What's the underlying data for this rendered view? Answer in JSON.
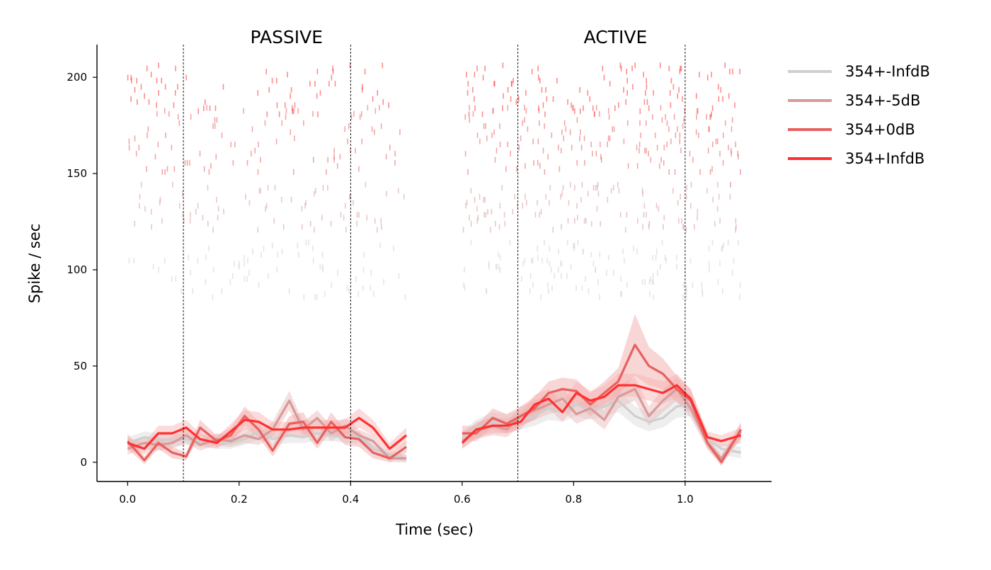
{
  "chart_data": {
    "type": "line",
    "xlabel": "Time (sec)",
    "ylabel": "Spike / sec",
    "xlim": [
      -0.055,
      1.155
    ],
    "ylim": [
      -10,
      217
    ],
    "xticks": [
      0.0,
      0.2,
      0.4,
      0.6,
      0.8,
      1.0
    ],
    "xtick_labels": [
      "0.0",
      "0.2",
      "0.4",
      "0.6",
      "0.8",
      "1.0"
    ],
    "yticks": [
      0,
      50,
      100,
      150,
      200
    ],
    "ytick_labels": [
      "0",
      "50",
      "100",
      "150",
      "200"
    ],
    "panel_titles": [
      {
        "label": "PASSIVE",
        "x": 0.285
      },
      {
        "label": "ACTIVE",
        "x": 0.875
      }
    ],
    "vlines": [
      0.1,
      0.4,
      0.7,
      1.0
    ],
    "grid": false,
    "legend_position": "outside-right",
    "panels": [
      {
        "title": "PASSIVE",
        "x": [
          0.0,
          0.03,
          0.055,
          0.08,
          0.105,
          0.13,
          0.16,
          0.185,
          0.21,
          0.235,
          0.26,
          0.29,
          0.315,
          0.34,
          0.365,
          0.39,
          0.415,
          0.44,
          0.47,
          0.5
        ]
      },
      {
        "title": "ACTIVE",
        "x": [
          0.6,
          0.625,
          0.655,
          0.68,
          0.705,
          0.73,
          0.755,
          0.78,
          0.805,
          0.83,
          0.855,
          0.88,
          0.91,
          0.935,
          0.96,
          0.985,
          1.01,
          1.04,
          1.065,
          1.1
        ]
      }
    ],
    "series": [
      {
        "name": "354+-InfdB",
        "color": "#cfcfcf",
        "band_color": "#d9d9d9",
        "raster_range": [
          85,
          115
        ],
        "values": [
          [
            10,
            13,
            12,
            11,
            12,
            11,
            10,
            10,
            12,
            16,
            12,
            14,
            13,
            15,
            14,
            13,
            13,
            7,
            4,
            2
          ],
          [
            12,
            18,
            21,
            20,
            22,
            24,
            28,
            26,
            30,
            27,
            29,
            32,
            24,
            21,
            23,
            29,
            30,
            12,
            7,
            5
          ]
        ],
        "band": [
          [
            3,
            3,
            3,
            3,
            3,
            3,
            3,
            3,
            3,
            4,
            3,
            4,
            3,
            4,
            3,
            3,
            3,
            2,
            2,
            2
          ],
          [
            4,
            4,
            5,
            5,
            5,
            5,
            6,
            5,
            6,
            5,
            5,
            6,
            5,
            5,
            5,
            6,
            6,
            3,
            3,
            3
          ]
        ]
      },
      {
        "name": "354+-5dB",
        "color": "#d89a9a",
        "band_color": "#e8b6b6",
        "raster_range": [
          120,
          145
        ],
        "values": [
          [
            7,
            10,
            9,
            10,
            14,
            9,
            12,
            11,
            14,
            12,
            17,
            32,
            17,
            23,
            15,
            19,
            14,
            11,
            2,
            2
          ],
          [
            11,
            16,
            19,
            17,
            24,
            27,
            30,
            33,
            25,
            28,
            22,
            34,
            38,
            24,
            32,
            38,
            28,
            10,
            2,
            16
          ]
        ],
        "band": [
          [
            3,
            3,
            3,
            3,
            4,
            3,
            3,
            3,
            4,
            3,
            4,
            5,
            4,
            4,
            4,
            4,
            3,
            3,
            2,
            2
          ],
          [
            4,
            4,
            5,
            4,
            5,
            5,
            5,
            6,
            5,
            5,
            5,
            6,
            6,
            5,
            6,
            6,
            5,
            3,
            2,
            4
          ]
        ]
      },
      {
        "name": "354+0dB",
        "color": "#e86060",
        "band_color": "#f2a3a3",
        "raster_range": [
          150,
          185
        ],
        "values": [
          [
            11,
            1,
            10,
            5,
            3,
            18,
            11,
            14,
            24,
            17,
            6,
            20,
            21,
            10,
            21,
            13,
            12,
            5,
            2,
            8
          ],
          [
            15,
            15,
            23,
            20,
            24,
            28,
            36,
            38,
            37,
            30,
            36,
            42,
            61,
            50,
            46,
            38,
            32,
            10,
            0,
            17
          ]
        ],
        "band": [
          [
            4,
            2,
            3,
            3,
            2,
            4,
            3,
            4,
            5,
            4,
            3,
            4,
            5,
            3,
            5,
            4,
            4,
            3,
            2,
            3
          ],
          [
            4,
            4,
            5,
            5,
            5,
            6,
            6,
            6,
            6,
            6,
            6,
            7,
            16,
            10,
            8,
            7,
            6,
            3,
            2,
            4
          ]
        ]
      },
      {
        "name": "354+InfdB",
        "color": "#ff3030",
        "band_color": "#f7b0b0",
        "raster_range": [
          180,
          207
        ],
        "values": [
          [
            10,
            7,
            15,
            15,
            18,
            12,
            10,
            16,
            22,
            21,
            17,
            17,
            18,
            18,
            18,
            18,
            23,
            18,
            7,
            14
          ],
          [
            10,
            17,
            19,
            19,
            21,
            30,
            33,
            26,
            36,
            32,
            34,
            40,
            40,
            38,
            36,
            40,
            33,
            13,
            11,
            14
          ]
        ],
        "band": [
          [
            3,
            3,
            4,
            4,
            4,
            3,
            3,
            4,
            5,
            5,
            4,
            4,
            4,
            4,
            4,
            4,
            5,
            4,
            3,
            4
          ],
          [
            3,
            4,
            4,
            4,
            4,
            5,
            5,
            5,
            6,
            5,
            6,
            6,
            6,
            6,
            6,
            6,
            5,
            3,
            3,
            4
          ]
        ]
      }
    ],
    "raster_x_ranges": [
      [
        0.0,
        0.5
      ],
      [
        0.6,
        1.1
      ]
    ]
  }
}
